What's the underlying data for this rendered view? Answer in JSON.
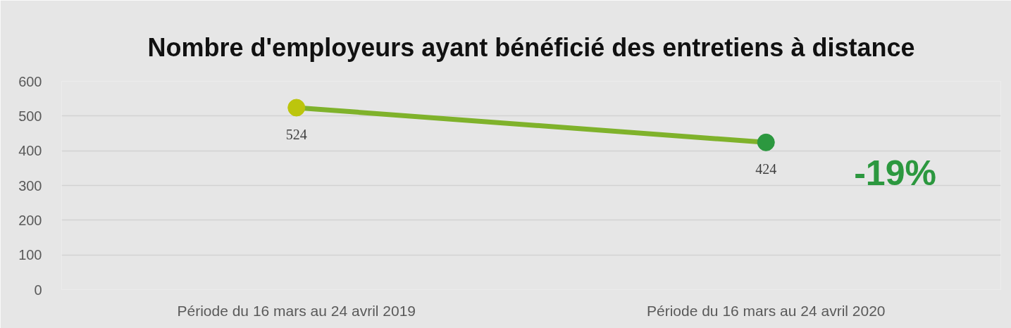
{
  "chart_data": {
    "type": "line",
    "title": "Nombre d'employeurs ayant bénéficié des entretiens à distance",
    "categories": [
      "Période du 16 mars au 24 avril 2019",
      "Période du 16 mars au 24 avril 2020"
    ],
    "series": [
      {
        "color": "#7fb22b",
        "colors": [
          "#bcc50c",
          "#2c983f"
        ],
        "values": [
          524,
          424
        ]
      }
    ],
    "ylim": [
      0,
      600
    ],
    "yticks": [
      0,
      100,
      200,
      300,
      400,
      500,
      600
    ],
    "grid": "y",
    "marker": "circle",
    "line_style": "solid",
    "data_labels": true,
    "annotations": [
      "-19%"
    ]
  }
}
